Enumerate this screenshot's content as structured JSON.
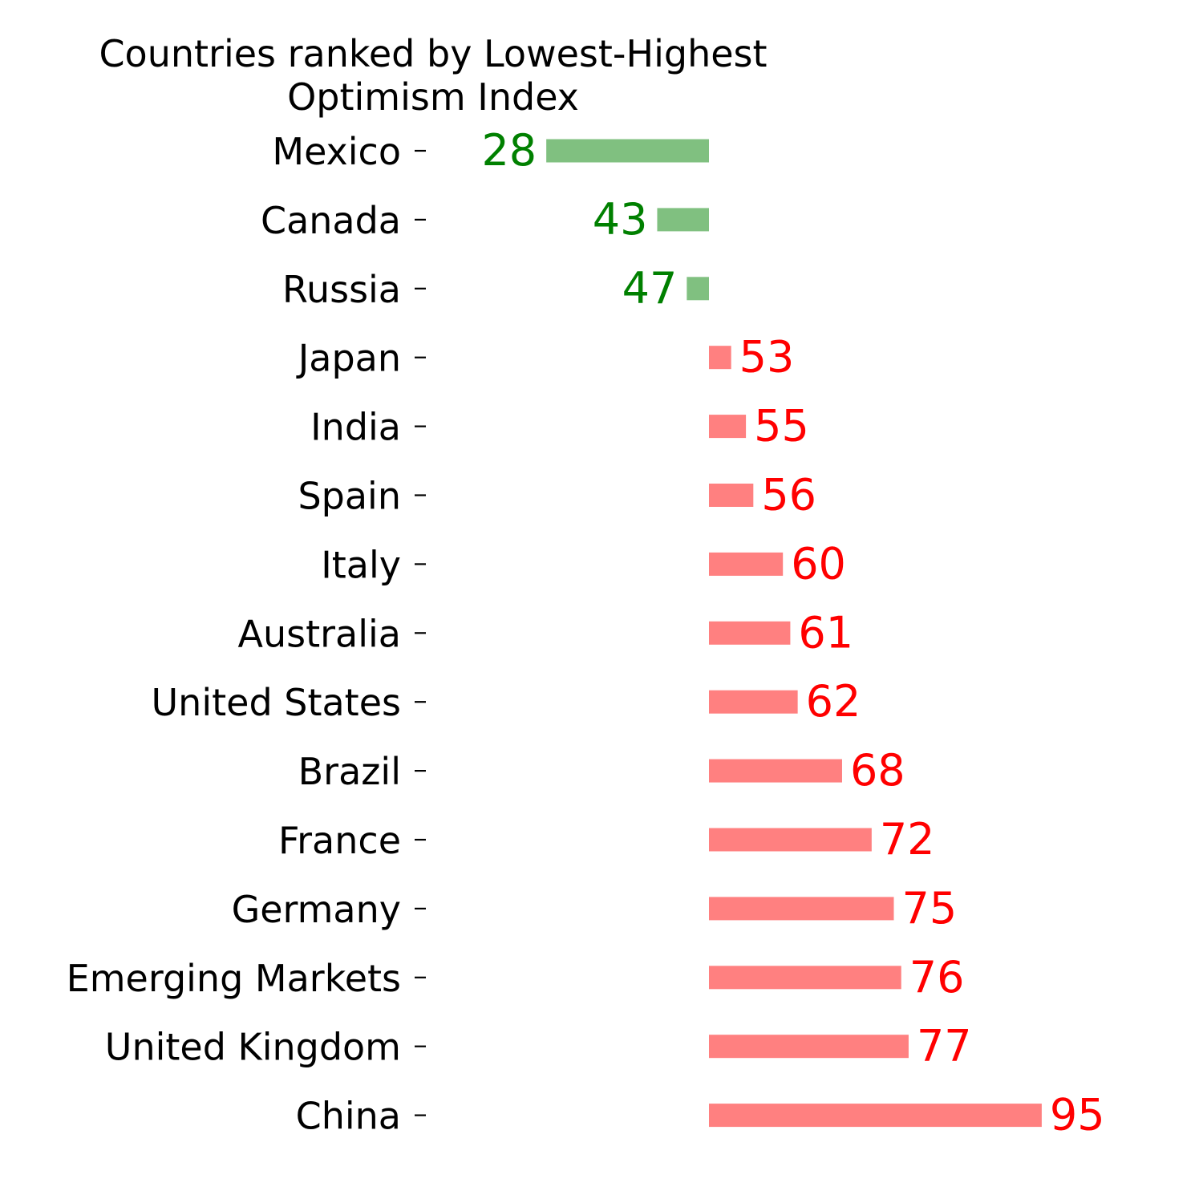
{
  "chart_data": {
    "type": "bar",
    "orientation": "horizontal-diverging",
    "title_lines": [
      "Countries ranked by Lowest-Highest",
      "Optimism Index"
    ],
    "categories": [
      "Mexico",
      "Canada",
      "Russia",
      "Japan",
      "India",
      "Spain",
      "Italy",
      "Australia",
      "United States",
      "Brazil",
      "France",
      "Germany",
      "Emerging Markets",
      "United Kingdom",
      "China"
    ],
    "values": [
      28,
      43,
      47,
      53,
      55,
      56,
      60,
      61,
      62,
      68,
      72,
      75,
      76,
      77,
      95
    ],
    "baseline": 50,
    "xlim": [
      0,
      100
    ],
    "grid": false,
    "colors": {
      "below_baseline_bar": "#80c080",
      "below_baseline_label": "#008000",
      "above_baseline_bar": "#ff8080",
      "above_baseline_label": "#ff0000",
      "category_text": "#000000"
    }
  }
}
